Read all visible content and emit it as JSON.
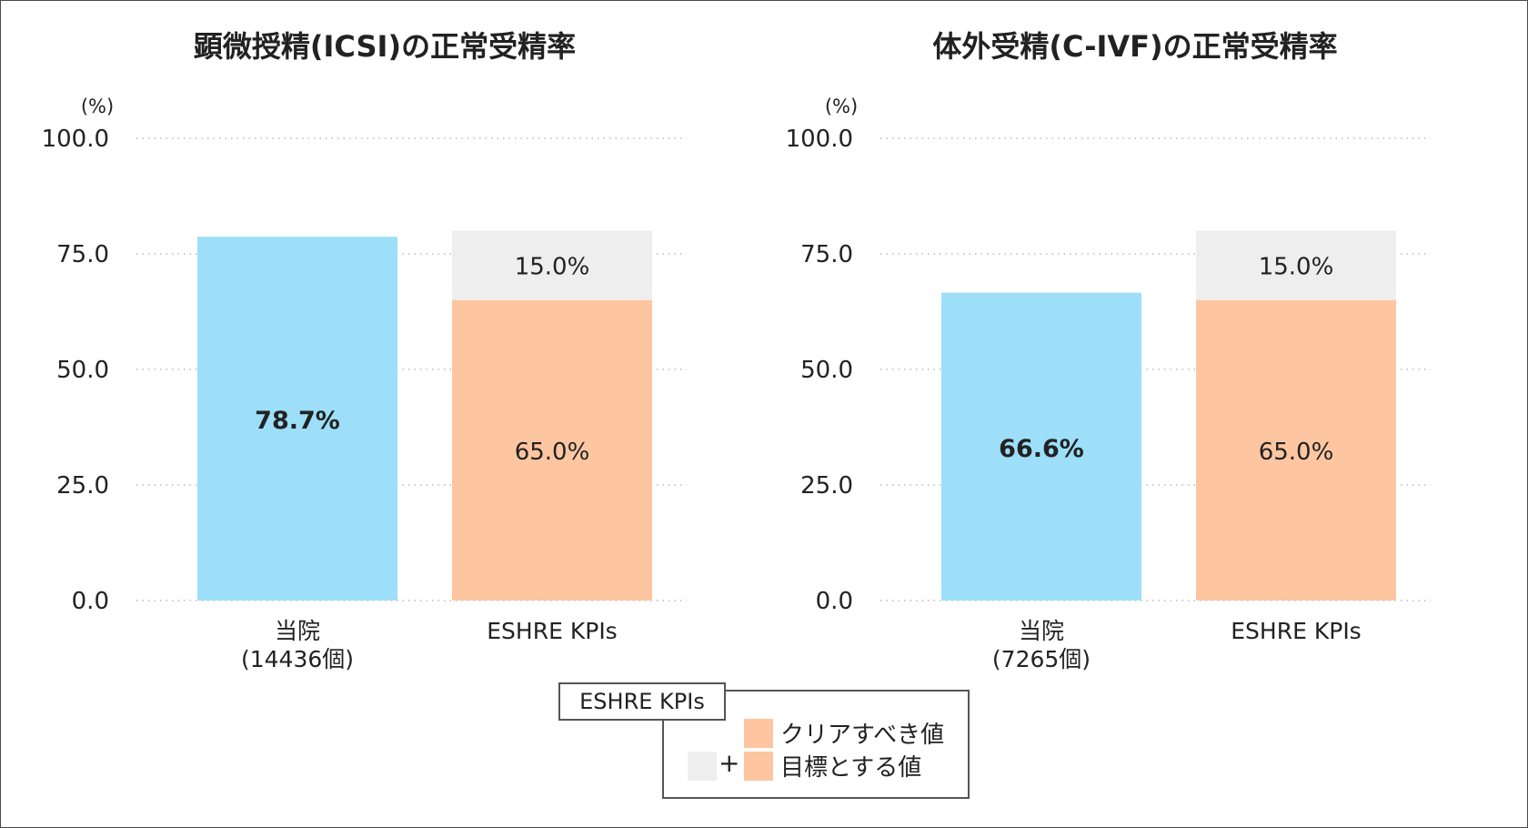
{
  "colors": {
    "hospital": "#9ddff9",
    "target": "#fdc6a0",
    "margin": "#eeeeee",
    "grid": "#bbbbbb"
  },
  "unit_label": "(%)",
  "chart_data": [
    {
      "type": "bar",
      "title": "顕微授精(ICSI)の正常受精率",
      "ylim": [
        0,
        100
      ],
      "yticks": [
        "0.0",
        "25.0",
        "50.0",
        "75.0",
        "100.0"
      ],
      "ytick_values": [
        0,
        25,
        50,
        75,
        100
      ],
      "ylabel": "(%)",
      "grid": true,
      "categories": [
        {
          "line1": "当院",
          "line2": "(14436個)"
        },
        {
          "line1": "ESHRE KPIs",
          "line2": ""
        }
      ],
      "hospital": {
        "value": 78.7,
        "label": "78.7%"
      },
      "eshre": {
        "base": {
          "value": 65.0,
          "label": "65.0%"
        },
        "extra": {
          "value": 15.0,
          "label": "15.0%"
        }
      }
    },
    {
      "type": "bar",
      "title": "体外受精(C-IVF)の正常受精率",
      "ylim": [
        0,
        100
      ],
      "yticks": [
        "0.0",
        "25.0",
        "50.0",
        "75.0",
        "100.0"
      ],
      "ytick_values": [
        0,
        25,
        50,
        75,
        100
      ],
      "ylabel": "(%)",
      "grid": true,
      "categories": [
        {
          "line1": "当院",
          "line2": "(7265個)"
        },
        {
          "line1": "ESHRE KPIs",
          "line2": ""
        }
      ],
      "hospital": {
        "value": 66.6,
        "label": "66.6%"
      },
      "eshre": {
        "base": {
          "value": 65.0,
          "label": "65.0%"
        },
        "extra": {
          "value": 15.0,
          "label": "15.0%"
        }
      }
    }
  ],
  "legend": {
    "tag": "ESHRE KPIs",
    "item1": "クリアすべき値",
    "plus": "+",
    "item2": "目標とする値"
  }
}
